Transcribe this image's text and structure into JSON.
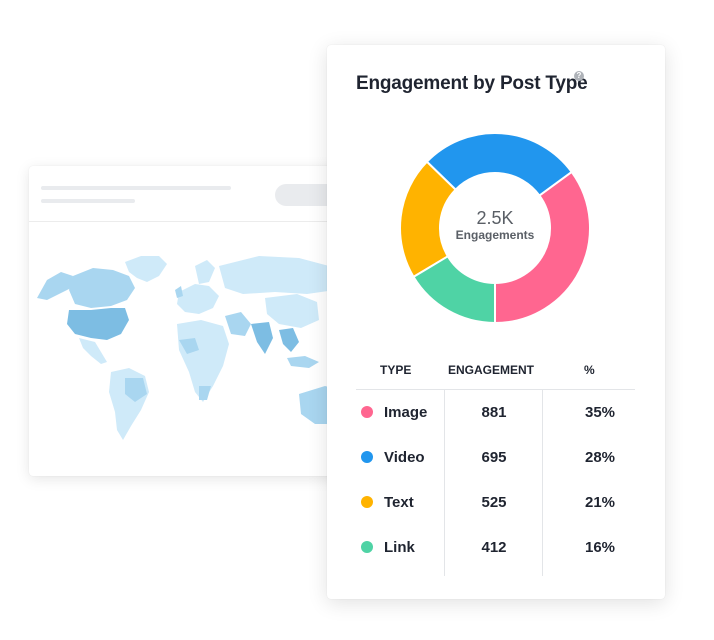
{
  "engagement_card": {
    "title": "Engagement by Post Type",
    "help_icon": "question-icon",
    "total": "2.5K",
    "total_label": "Engagements"
  },
  "table": {
    "headers": {
      "type": "TYPE",
      "engagement": "ENGAGEMENT",
      "percent": "%"
    },
    "rows": [
      {
        "type": "Image",
        "engagement": "881",
        "percent": "35%",
        "color": "#ff6690"
      },
      {
        "type": "Video",
        "engagement": "695",
        "percent": "28%",
        "color": "#2196ee"
      },
      {
        "type": "Text",
        "engagement": "525",
        "percent": "21%",
        "color": "#ffb300"
      },
      {
        "type": "Link",
        "engagement": "412",
        "percent": "16%",
        "color": "#4fd3a5"
      }
    ]
  },
  "chart_data": {
    "type": "pie",
    "donut": true,
    "categories": [
      "Image",
      "Video",
      "Text",
      "Link"
    ],
    "values": [
      881,
      695,
      525,
      412
    ],
    "percent": [
      35,
      28,
      21,
      16
    ],
    "colors": [
      "#ff6690",
      "#2196ee",
      "#ffb300",
      "#4fd3a5"
    ],
    "title": "Engagement by Post Type"
  },
  "map_card": {
    "type": "world-map",
    "colors": {
      "light": "#cfeaf9",
      "medium": "#a9d6f0",
      "dark": "#7dbde3"
    }
  }
}
